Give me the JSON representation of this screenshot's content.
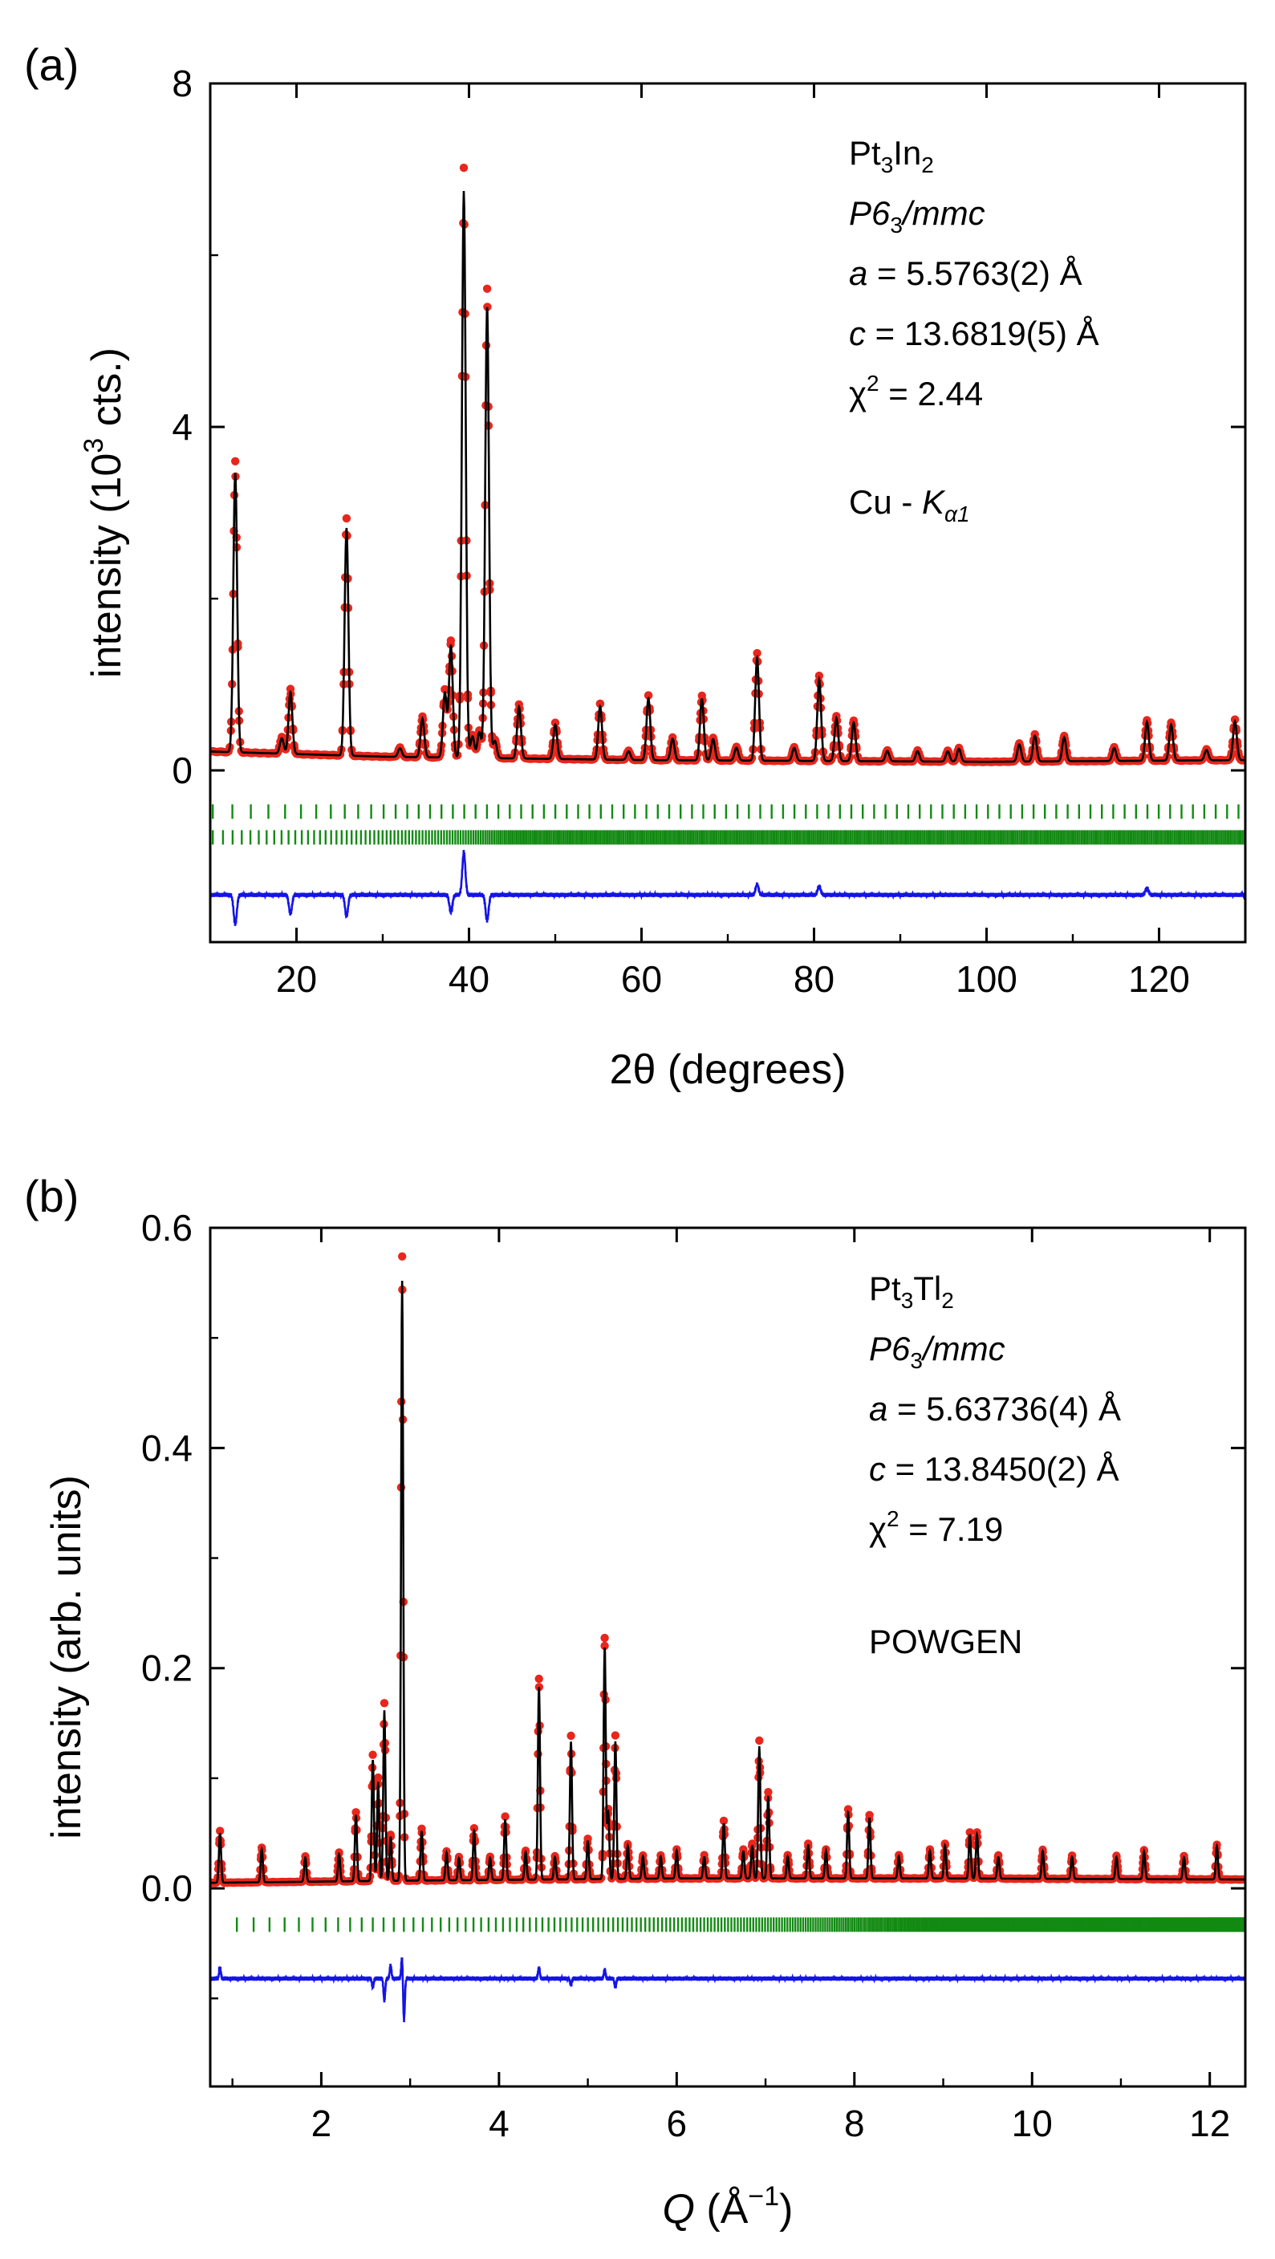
{
  "chart_data": [
    {
      "panel_label": "(a)",
      "type": "scatter",
      "xlabel": "2θ (degrees)",
      "ylabel_main": "intensity (10",
      "ylabel_sup": "3",
      "ylabel_tail": " cts.)",
      "xlim": [
        10,
        130
      ],
      "ylim": [
        -2.0,
        8.0
      ],
      "xticks": [
        20,
        40,
        60,
        80,
        100,
        120
      ],
      "xtick_labels": [
        "20",
        "40",
        "60",
        "80",
        "100",
        "120"
      ],
      "yticks": [
        0,
        4,
        8
      ],
      "ytick_labels": [
        "0",
        "4",
        "8"
      ],
      "background": [
        [
          10,
          0.22
        ],
        [
          30,
          0.16
        ],
        [
          60,
          0.12
        ],
        [
          100,
          0.1
        ],
        [
          130,
          0.12
        ]
      ],
      "peaks": [
        {
          "x": 12.9,
          "h": 3.25
        },
        {
          "x": 18.3,
          "h": 0.18
        },
        {
          "x": 19.3,
          "h": 0.72
        },
        {
          "x": 25.8,
          "h": 2.65
        },
        {
          "x": 32.0,
          "h": 0.1
        },
        {
          "x": 34.6,
          "h": 0.45
        },
        {
          "x": 37.2,
          "h": 0.75
        },
        {
          "x": 37.9,
          "h": 1.3
        },
        {
          "x": 39.4,
          "h": 6.6
        },
        {
          "x": 40.4,
          "h": 0.25
        },
        {
          "x": 41.2,
          "h": 0.3
        },
        {
          "x": 42.1,
          "h": 5.25
        },
        {
          "x": 43.0,
          "h": 0.2
        },
        {
          "x": 45.8,
          "h": 0.6
        },
        {
          "x": 50.0,
          "h": 0.4
        },
        {
          "x": 55.2,
          "h": 0.62
        },
        {
          "x": 58.5,
          "h": 0.1
        },
        {
          "x": 60.8,
          "h": 0.72
        },
        {
          "x": 63.6,
          "h": 0.25
        },
        {
          "x": 67.0,
          "h": 0.72
        },
        {
          "x": 68.3,
          "h": 0.25
        },
        {
          "x": 71.0,
          "h": 0.15
        },
        {
          "x": 73.4,
          "h": 1.2
        },
        {
          "x": 77.7,
          "h": 0.15
        },
        {
          "x": 80.6,
          "h": 0.95
        },
        {
          "x": 82.6,
          "h": 0.5
        },
        {
          "x": 84.6,
          "h": 0.45
        },
        {
          "x": 88.5,
          "h": 0.12
        },
        {
          "x": 92.0,
          "h": 0.12
        },
        {
          "x": 95.5,
          "h": 0.12
        },
        {
          "x": 96.8,
          "h": 0.15
        },
        {
          "x": 103.8,
          "h": 0.2
        },
        {
          "x": 105.6,
          "h": 0.3
        },
        {
          "x": 109.0,
          "h": 0.28
        },
        {
          "x": 114.8,
          "h": 0.15
        },
        {
          "x": 118.6,
          "h": 0.45
        },
        {
          "x": 121.4,
          "h": 0.42
        },
        {
          "x": 125.5,
          "h": 0.12
        },
        {
          "x": 128.8,
          "h": 0.45
        }
      ],
      "peak_width": 0.22,
      "tick_rows": [
        -0.48,
        -0.78
      ],
      "tick_spacing": [
        [
          2.4,
          0.55
        ],
        [
          1.25,
          0.18
        ]
      ],
      "diff_offset": -1.45,
      "diff_features": [
        {
          "x": 12.9,
          "d": -0.35
        },
        {
          "x": 19.3,
          "d": -0.22
        },
        {
          "x": 25.8,
          "d": -0.25
        },
        {
          "x": 37.9,
          "d": -0.2
        },
        {
          "x": 39.4,
          "d": 0.5
        },
        {
          "x": 42.1,
          "d": -0.3
        },
        {
          "x": 73.4,
          "d": 0.12
        },
        {
          "x": 80.6,
          "d": 0.1
        },
        {
          "x": 118.6,
          "d": 0.08
        }
      ],
      "annotations": {
        "formula_main": "Pt",
        "formula_sub1": "3",
        "formula_mid": "In",
        "formula_sub2": "2",
        "spacegroup_main": "P6",
        "spacegroup_sub": "3",
        "spacegroup_tail": "/mmc",
        "a_param_sym": "a",
        "a_param_val": " = 5.5763(2) Å",
        "c_param_sym": "c",
        "c_param_val": " = 13.6819(5) Å",
        "chi_main": "χ",
        "chi_sup": "2",
        "chi_val": " = 2.44",
        "source_main": "Cu - ",
        "source_k": "K",
        "source_sub": "α1"
      },
      "colors": {
        "observed": "#e8261c",
        "calculated": "#000000",
        "tick_color": "#138a13",
        "difference": "#1414e6"
      }
    },
    {
      "panel_label": "(b)",
      "type": "scatter",
      "xlabel_q": "Q",
      "xlabel_main": " (Å",
      "xlabel_sup": "−1",
      "xlabel_tail": ")",
      "ylabel": "intensity (arb. units)",
      "xlim": [
        0.75,
        12.4
      ],
      "ylim": [
        -0.18,
        0.6
      ],
      "xticks": [
        2,
        4,
        6,
        8,
        10,
        12
      ],
      "xtick_labels": [
        "2",
        "4",
        "6",
        "8",
        "10",
        "12"
      ],
      "yticks": [
        0.0,
        0.2,
        0.4,
        0.6
      ],
      "ytick_labels": [
        "0.0",
        "0.2",
        "0.4",
        "0.6"
      ],
      "background": [
        [
          0.75,
          0.005
        ],
        [
          3,
          0.007
        ],
        [
          6,
          0.009
        ],
        [
          9,
          0.009
        ],
        [
          12.4,
          0.008
        ]
      ],
      "peaks": [
        {
          "x": 0.86,
          "h": 0.045
        },
        {
          "x": 1.33,
          "h": 0.03
        },
        {
          "x": 1.82,
          "h": 0.022
        },
        {
          "x": 2.2,
          "h": 0.025
        },
        {
          "x": 2.39,
          "h": 0.06
        },
        {
          "x": 2.58,
          "h": 0.11
        },
        {
          "x": 2.64,
          "h": 0.09
        },
        {
          "x": 2.71,
          "h": 0.155
        },
        {
          "x": 2.78,
          "h": 0.04
        },
        {
          "x": 2.91,
          "h": 0.545
        },
        {
          "x": 3.13,
          "h": 0.045
        },
        {
          "x": 3.41,
          "h": 0.025
        },
        {
          "x": 3.55,
          "h": 0.02
        },
        {
          "x": 3.72,
          "h": 0.045
        },
        {
          "x": 3.9,
          "h": 0.02
        },
        {
          "x": 4.07,
          "h": 0.055
        },
        {
          "x": 4.3,
          "h": 0.025
        },
        {
          "x": 4.45,
          "h": 0.175
        },
        {
          "x": 4.63,
          "h": 0.02
        },
        {
          "x": 4.81,
          "h": 0.125
        },
        {
          "x": 5.0,
          "h": 0.035
        },
        {
          "x": 5.19,
          "h": 0.21
        },
        {
          "x": 5.23,
          "h": 0.06
        },
        {
          "x": 5.31,
          "h": 0.125
        },
        {
          "x": 5.45,
          "h": 0.03
        },
        {
          "x": 5.62,
          "h": 0.02
        },
        {
          "x": 5.82,
          "h": 0.02
        },
        {
          "x": 6.0,
          "h": 0.025
        },
        {
          "x": 6.31,
          "h": 0.02
        },
        {
          "x": 6.53,
          "h": 0.05
        },
        {
          "x": 6.75,
          "h": 0.025
        },
        {
          "x": 6.85,
          "h": 0.03
        },
        {
          "x": 6.93,
          "h": 0.12
        },
        {
          "x": 7.03,
          "h": 0.075
        },
        {
          "x": 7.25,
          "h": 0.02
        },
        {
          "x": 7.48,
          "h": 0.03
        },
        {
          "x": 7.68,
          "h": 0.025
        },
        {
          "x": 7.93,
          "h": 0.06
        },
        {
          "x": 8.17,
          "h": 0.055
        },
        {
          "x": 8.5,
          "h": 0.02
        },
        {
          "x": 8.85,
          "h": 0.025
        },
        {
          "x": 9.02,
          "h": 0.03
        },
        {
          "x": 9.3,
          "h": 0.04
        },
        {
          "x": 9.38,
          "h": 0.04
        },
        {
          "x": 9.62,
          "h": 0.02
        },
        {
          "x": 10.12,
          "h": 0.025
        },
        {
          "x": 10.45,
          "h": 0.02
        },
        {
          "x": 10.95,
          "h": 0.02
        },
        {
          "x": 11.26,
          "h": 0.025
        },
        {
          "x": 11.71,
          "h": 0.02
        },
        {
          "x": 12.08,
          "h": 0.03
        }
      ],
      "peak_width": 0.012,
      "tick_rows": [
        -0.033
      ],
      "tick_spacing": [
        [
          0.2,
          0.035
        ]
      ],
      "diff_offset": -0.082,
      "diff_features": [
        {
          "x": 0.86,
          "d": 0.01
        },
        {
          "x": 2.58,
          "d": -0.008
        },
        {
          "x": 2.71,
          "d": -0.02
        },
        {
          "x": 2.78,
          "d": 0.012
        },
        {
          "x": 2.91,
          "d": 0.022
        },
        {
          "x": 2.93,
          "d": -0.04
        },
        {
          "x": 4.45,
          "d": 0.01
        },
        {
          "x": 4.81,
          "d": -0.006
        },
        {
          "x": 5.19,
          "d": 0.008
        },
        {
          "x": 5.31,
          "d": -0.008
        }
      ],
      "annotations": {
        "formula_main": "Pt",
        "formula_sub1": "3",
        "formula_mid": "Tl",
        "formula_sub2": "2",
        "spacegroup_main": "P6",
        "spacegroup_sub": "3",
        "spacegroup_tail": "/mmc",
        "a_param_sym": "a",
        "a_param_val": " = 5.63736(4) Å",
        "c_param_sym": "c",
        "c_param_val": " = 13.8450(2) Å",
        "chi_main": "χ",
        "chi_sup": "2",
        "chi_val": " = 7.19",
        "source_main": "POWGEN"
      },
      "colors": {
        "observed": "#e8261c",
        "calculated": "#000000",
        "tick_color": "#138a13",
        "difference": "#1414e6"
      }
    }
  ]
}
